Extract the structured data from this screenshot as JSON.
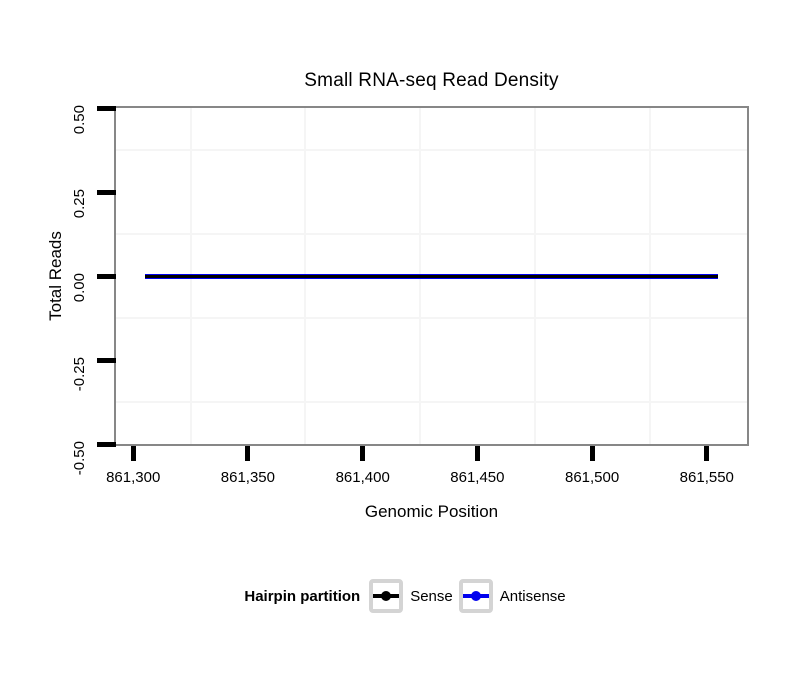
{
  "chart_data": {
    "type": "line",
    "title": "Small RNA-seq Read Density",
    "xlabel": "Genomic Position",
    "ylabel": "Total Reads",
    "grid": "minor-only",
    "panel_border_color": "#878787",
    "gridline_color": "#F5F5F5",
    "x_axis": {
      "range": [
        861292.5,
        861567.5
      ],
      "ticks": [
        861300,
        861350,
        861400,
        861450,
        861500,
        861550
      ],
      "tick_labels": [
        "861,300",
        "861,350",
        "861,400",
        "861,450",
        "861,500",
        "861,550"
      ],
      "minor_gridlines": [
        861325,
        861375,
        861425,
        861475,
        861525
      ]
    },
    "y_axis": {
      "range": [
        -0.5,
        0.5
      ],
      "ticks": [
        0.5,
        0.25,
        0,
        -0.25,
        -0.5
      ],
      "tick_labels": [
        "0.50",
        "0.25",
        "0.00",
        "-0.25",
        "-0.50"
      ],
      "minor_gridlines": [
        0.375,
        0.125,
        -0.125,
        -0.375
      ]
    },
    "series": [
      {
        "name": "Sense",
        "color": "#000000",
        "x": [
          861305,
          861555
        ],
        "y": [
          0,
          0
        ],
        "thickness": 3,
        "z": 2
      },
      {
        "name": "Antisense",
        "color": "#0000EE",
        "x": [
          861305,
          861555
        ],
        "y": [
          0,
          0
        ],
        "thickness": 5,
        "z": 1
      }
    ],
    "legend": {
      "title": "Hairpin partition",
      "position": "bottom",
      "entries": [
        {
          "label": "Sense",
          "color": "#000000"
        },
        {
          "label": "Antisense",
          "color": "#0000EE"
        }
      ]
    }
  },
  "colors": {
    "background": "#ffffff",
    "tick": "#000000",
    "key_box_border": "#D4D4D4"
  }
}
